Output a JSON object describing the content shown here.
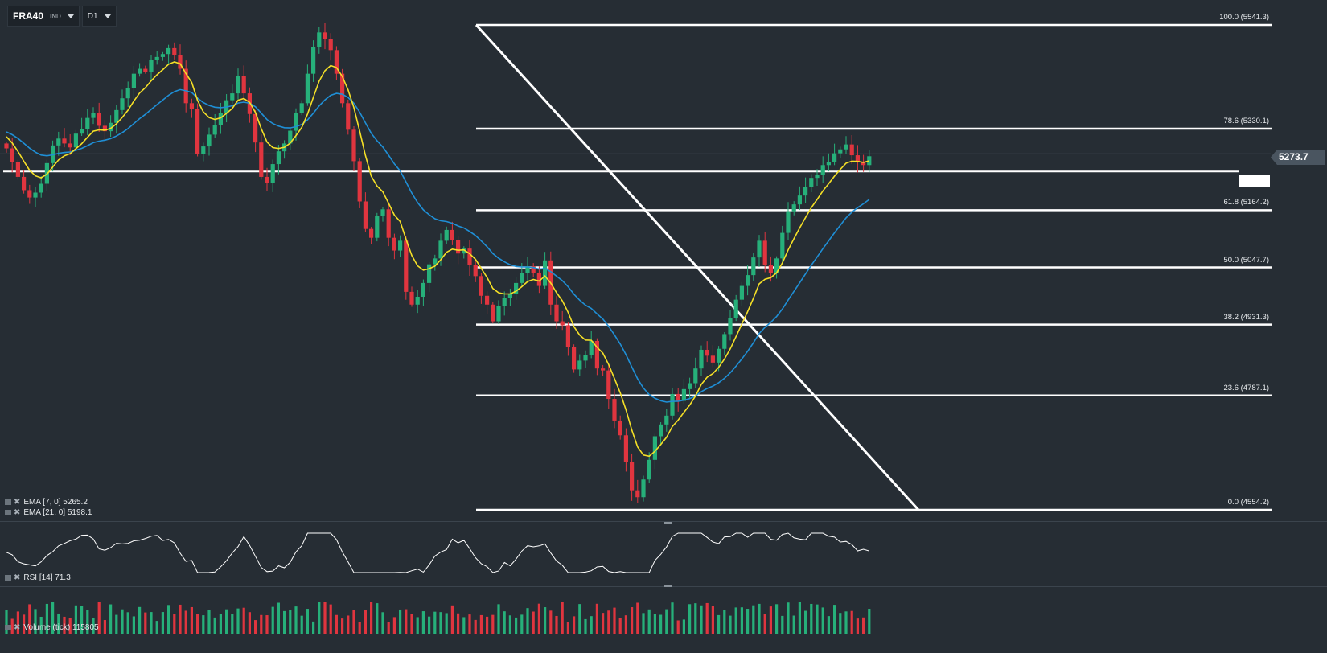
{
  "toolbar": {
    "symbol": "FRA40",
    "symbol_type": "IND",
    "timeframe": "D1"
  },
  "last_price": "5273.7",
  "fib_levels": [
    {
      "label": "100.0 (5541.3)",
      "price": 5541.3
    },
    {
      "label": "78.6 (5330.1)",
      "price": 5330.1
    },
    {
      "label": "61.8 (5164.2)",
      "price": 5164.2
    },
    {
      "label": "50.0 (5047.7)",
      "price": 5047.7
    },
    {
      "label": "38.2 (4931.3)",
      "price": 4931.3
    },
    {
      "label": "23.6 (4787.1)",
      "price": 4787.1
    },
    {
      "label": "0.0 (4554.2)",
      "price": 4554.2
    }
  ],
  "indicators": {
    "ema7": {
      "label": "EMA  [7,  0]  5265.2",
      "color": "#f5e027"
    },
    "ema21": {
      "label": "EMA  [21,  0]  5198.1",
      "color": "#1f8fd6"
    },
    "rsi": {
      "label": "RSI  [14]  71.3"
    },
    "volume": {
      "label": "Volume  (tick)  115805"
    }
  },
  "colors": {
    "background": "#262d34",
    "bull": "#26b07a",
    "bear": "#e0353f",
    "fib_line": "#ffffff"
  },
  "chart_data": {
    "type": "candlestick",
    "title": "",
    "price_range_visible": [
      4500,
      5600
    ],
    "horizontal_line": 5243,
    "trend_line": {
      "from": 5541.3,
      "to": 4554.2
    },
    "closes": [
      5290,
      5262,
      5232,
      5205,
      5190,
      5200,
      5218,
      5260,
      5296,
      5310,
      5300,
      5292,
      5320,
      5330,
      5352,
      5362,
      5336,
      5325,
      5342,
      5368,
      5392,
      5412,
      5442,
      5452,
      5446,
      5470,
      5476,
      5482,
      5494,
      5480,
      5452,
      5382,
      5370,
      5278,
      5294,
      5318,
      5338,
      5362,
      5388,
      5402,
      5438,
      5402,
      5360,
      5302,
      5232,
      5220,
      5258,
      5284,
      5300,
      5326,
      5362,
      5382,
      5442,
      5496,
      5526,
      5512,
      5490,
      5442,
      5382,
      5328,
      5264,
      5182,
      5126,
      5108,
      5153,
      5166,
      5108,
      5082,
      5102,
      4998,
      4972,
      4988,
      5016,
      5054,
      5066,
      5102,
      5124,
      5104,
      5076,
      5086,
      5052,
      5030,
      4990,
      4972,
      4938,
      4970,
      4986,
      4994,
      5016,
      5036,
      5050,
      5036,
      5010,
      5062,
      4972,
      4938,
      4930,
      4886,
      4840,
      4858,
      4870,
      4898,
      4842,
      4838,
      4780,
      4736,
      4706,
      4652,
      4594,
      4580,
      4616,
      4656,
      4704,
      4728,
      4746,
      4790,
      4776,
      4800,
      4812,
      4842,
      4880,
      4868,
      4854,
      4882,
      4912,
      4944,
      4982,
      5010,
      5032,
      5068,
      5102,
      5052,
      5036,
      5066,
      5118,
      5162,
      5176,
      5194,
      5212,
      5230,
      5236,
      5256,
      5262,
      5280,
      5288,
      5298,
      5276,
      5262,
      5256,
      5274
    ]
  }
}
